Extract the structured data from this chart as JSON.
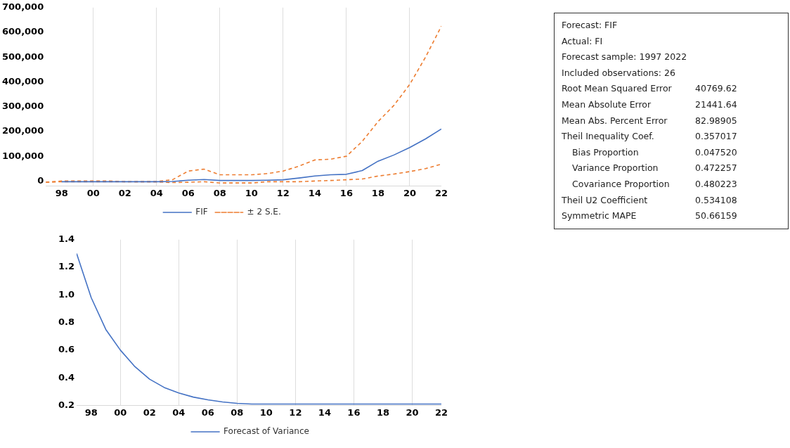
{
  "chart_data": [
    {
      "type": "line",
      "x": [
        1997,
        1998,
        1999,
        2000,
        2001,
        2002,
        2003,
        2004,
        2005,
        2006,
        2007,
        2008,
        2009,
        2010,
        2011,
        2012,
        2013,
        2014,
        2015,
        2016,
        2017,
        2018,
        2019,
        2020,
        2021,
        2022
      ],
      "series": [
        {
          "name": "FIF",
          "color": "#4472c4",
          "line_style": "solid",
          "values": [
            null,
            -3000,
            -3000,
            -3000,
            -3000,
            -3000,
            -3000,
            -3000,
            -2000,
            3000,
            6000,
            2000,
            2000,
            2000,
            3000,
            5000,
            12000,
            20000,
            25000,
            27000,
            42000,
            80000,
            105000,
            135000,
            170000,
            210000
          ]
        },
        {
          "name": "± 2 S.E.",
          "color": "#ed7d31",
          "line_style": "dashed",
          "values": [
            -5000,
            0,
            0,
            0,
            0,
            -3000,
            -2000,
            -2000,
            5000,
            40000,
            48000,
            25000,
            25000,
            25000,
            30000,
            40000,
            60000,
            85000,
            88000,
            100000,
            160000,
            240000,
            305000,
            390000,
            500000,
            625000
          ]
        },
        {
          "color": "#ed7d31",
          "line_style": "dashed",
          "values": [
            -5000,
            -3000,
            -3000,
            -3000,
            -3000,
            -3000,
            -4000,
            -4000,
            -6000,
            -5000,
            -3000,
            -8000,
            -8000,
            -8000,
            -3000,
            -3000,
            -3000,
            0,
            2000,
            5000,
            8000,
            20000,
            28000,
            38000,
            50000,
            68000
          ]
        }
      ],
      "xlim": [
        1997,
        2022
      ],
      "xticks": [
        {
          "value": 1998,
          "label": "98"
        },
        {
          "value": 2000,
          "label": "00"
        },
        {
          "value": 2002,
          "label": "02"
        },
        {
          "value": 2004,
          "label": "04"
        },
        {
          "value": 2006,
          "label": "06"
        },
        {
          "value": 2008,
          "label": "08"
        },
        {
          "value": 2010,
          "label": "10"
        },
        {
          "value": 2012,
          "label": "12"
        },
        {
          "value": 2014,
          "label": "14"
        },
        {
          "value": 2016,
          "label": "16"
        },
        {
          "value": 2018,
          "label": "18"
        },
        {
          "value": 2020,
          "label": "20"
        },
        {
          "value": 2022,
          "label": "22"
        }
      ],
      "ylim": [
        -20000,
        700000
      ],
      "yticks": [
        {
          "value": 0,
          "label": "0"
        },
        {
          "value": 100000,
          "label": "100,000"
        },
        {
          "value": 200000,
          "label": "200,000"
        },
        {
          "value": 300000,
          "label": "300,000"
        },
        {
          "value": 400000,
          "label": "400,000"
        },
        {
          "value": 500000,
          "label": "500,000"
        },
        {
          "value": 600000,
          "label": "600,000"
        },
        {
          "value": 700000,
          "label": "700,000"
        }
      ],
      "grid": "x",
      "legend": "bottom",
      "marker": "none"
    },
    {
      "type": "line",
      "x": [
        1997,
        1998,
        1999,
        2000,
        2001,
        2002,
        2003,
        2004,
        2005,
        2006,
        2007,
        2008,
        2009,
        2010,
        2011,
        2012,
        2013,
        2014,
        2015,
        2016,
        2017,
        2018,
        2019,
        2020,
        2021,
        2022
      ],
      "series": [
        {
          "name": "Forecast of Variance",
          "color": "#4472c4",
          "line_style": "solid",
          "values": [
            1.3,
            0.98,
            0.75,
            0.6,
            0.48,
            0.39,
            0.33,
            0.29,
            0.26,
            0.24,
            0.225,
            0.215,
            0.21,
            0.21,
            0.21,
            0.21,
            0.21,
            0.21,
            0.21,
            0.21,
            0.21,
            0.21,
            0.21,
            0.21,
            0.21,
            0.21
          ]
        }
      ],
      "xlim": [
        1997,
        2022
      ],
      "xticks": [
        {
          "value": 1998,
          "label": "98"
        },
        {
          "value": 2000,
          "label": "00"
        },
        {
          "value": 2002,
          "label": "02"
        },
        {
          "value": 2004,
          "label": "04"
        },
        {
          "value": 2006,
          "label": "06"
        },
        {
          "value": 2008,
          "label": "08"
        },
        {
          "value": 2010,
          "label": "10"
        },
        {
          "value": 2012,
          "label": "12"
        },
        {
          "value": 2014,
          "label": "14"
        },
        {
          "value": 2016,
          "label": "16"
        },
        {
          "value": 2018,
          "label": "18"
        },
        {
          "value": 2020,
          "label": "20"
        },
        {
          "value": 2022,
          "label": "22"
        }
      ],
      "ylim": [
        0.2,
        1.4
      ],
      "yticks": [
        {
          "value": 0.2,
          "label": "0.2"
        },
        {
          "value": 0.4,
          "label": "0.4"
        },
        {
          "value": 0.6,
          "label": "0.6"
        },
        {
          "value": 0.8,
          "label": "0.8"
        },
        {
          "value": 1,
          "label": "1.0"
        },
        {
          "value": 1.2,
          "label": "1.2"
        },
        {
          "value": 1.4,
          "label": "1.4"
        }
      ],
      "grid": "x",
      "legend": "bottom",
      "marker": "none"
    },
    {
      "type": "other",
      "annotations": [
        "Forecast: FIF",
        "Actual: FI",
        "Forecast sample: 1997 2022",
        "Included observations: 26",
        "Root Mean Squared Error\t40769.62",
        "Mean Absolute Error\t21441.64",
        "Mean Abs. Percent Error\t82.98905",
        "Theil Inequality Coef.\t0.357017",
        "   Bias Proportion\t0.047520",
        "   Variance Proportion\t0.472257",
        "   Covariance Proportion\t0.480223",
        "Theil U2 Coefficient\t0.534108",
        "Symmetric MAPE\t50.66159"
      ]
    }
  ]
}
